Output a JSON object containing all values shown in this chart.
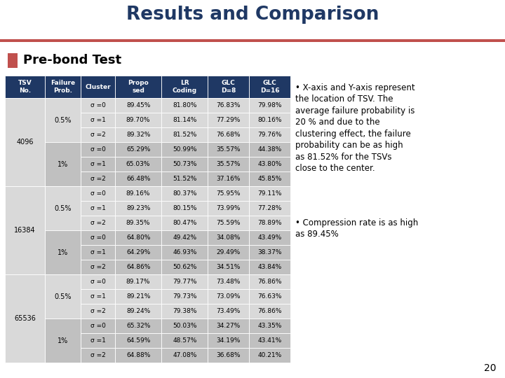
{
  "title": "Results and Comparison",
  "subtitle": "Pre-bond Test",
  "title_color": "#1F3864",
  "accent_color": "#C0504D",
  "header_bg": "#1F3864",
  "header_fg": "#FFFFFF",
  "col_headers": [
    "TSV\nNo.",
    "Failure\nProb.",
    "Cluster",
    "Propo\nsed",
    "LR\nCoding",
    "GLC\nD=8",
    "GLC\nD=16"
  ],
  "rows": [
    [
      "4096",
      "0.5%",
      "σ =0",
      "89.45%",
      "81.80%",
      "76.83%",
      "79.98%"
    ],
    [
      "4096",
      "0.5%",
      "σ =1",
      "89.70%",
      "81.14%",
      "77.29%",
      "80.16%"
    ],
    [
      "4096",
      "0.5%",
      "σ =2",
      "89.32%",
      "81.52%",
      "76.68%",
      "79.76%"
    ],
    [
      "4096",
      "1%",
      "σ =0",
      "65.29%",
      "50.99%",
      "35.57%",
      "44.38%"
    ],
    [
      "4096",
      "1%",
      "σ =1",
      "65.03%",
      "50.73%",
      "35.57%",
      "43.80%"
    ],
    [
      "4096",
      "1%",
      "σ =2",
      "66.48%",
      "51.52%",
      "37.16%",
      "45.85%"
    ],
    [
      "16384",
      "0.5%",
      "σ =0",
      "89.16%",
      "80.37%",
      "75.95%",
      "79.11%"
    ],
    [
      "16384",
      "0.5%",
      "σ =1",
      "89.23%",
      "80.15%",
      "73.99%",
      "77.28%"
    ],
    [
      "16384",
      "0.5%",
      "σ =2",
      "89.35%",
      "80.47%",
      "75.59%",
      "78.89%"
    ],
    [
      "16384",
      "1%",
      "σ =0",
      "64.80%",
      "49.42%",
      "34.08%",
      "43.49%"
    ],
    [
      "16384",
      "1%",
      "σ =1",
      "64.29%",
      "46.93%",
      "29.49%",
      "38.37%"
    ],
    [
      "16384",
      "1%",
      "σ =2",
      "64.86%",
      "50.62%",
      "34.51%",
      "43.84%"
    ],
    [
      "65536",
      "0.5%",
      "σ =0",
      "89.17%",
      "79.77%",
      "73.48%",
      "76.86%"
    ],
    [
      "65536",
      "0.5%",
      "σ =1",
      "89.21%",
      "79.73%",
      "73.09%",
      "76.63%"
    ],
    [
      "65536",
      "0.5%",
      "σ =2",
      "89.24%",
      "79.38%",
      "73.49%",
      "76.86%"
    ],
    [
      "65536",
      "1%",
      "σ =0",
      "65.32%",
      "50.03%",
      "34.27%",
      "43.35%"
    ],
    [
      "65536",
      "1%",
      "σ =1",
      "64.59%",
      "48.57%",
      "34.19%",
      "43.41%"
    ],
    [
      "65536",
      "1%",
      "σ =2",
      "64.88%",
      "47.08%",
      "36.68%",
      "40.21%"
    ]
  ],
  "bullet_texts": [
    "X-axis and Y-axis represent\nthe location of TSV. The\naverage failure probability is\n20 % and due to the\nclustering effect, the failure\nprobability can be as high\nas 81.52% for the TSVs\nclose to the center.",
    "Compression rate is as high\nas 89.45%"
  ],
  "page_number": "20",
  "bg_color": "#FFFFFF",
  "light_row_bg": "#D9D9D9",
  "dark_row_bg": "#C0C0C0",
  "header_line_color": "#C0504D"
}
